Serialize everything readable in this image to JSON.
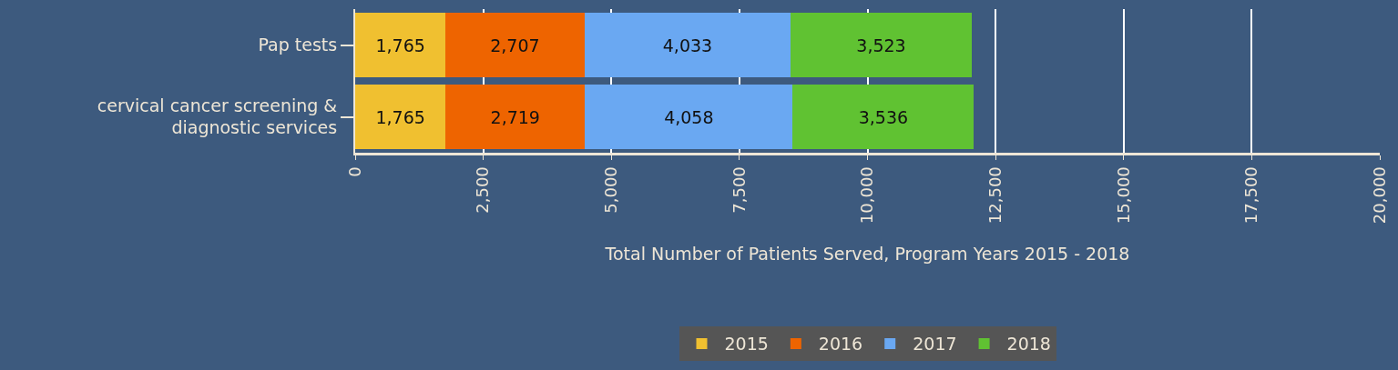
{
  "chart_data": {
    "type": "bar",
    "orientation": "horizontal",
    "stacked": true,
    "categories": [
      "Pap tests",
      "cervical cancer screening & diagnostic services"
    ],
    "series": [
      {
        "name": "2015",
        "color": "#f0c030",
        "values": [
          1765,
          1765
        ],
        "value_labels": [
          "1,765",
          "1,765"
        ]
      },
      {
        "name": "2016",
        "color": "#ee6400",
        "values": [
          2707,
          2719
        ],
        "value_labels": [
          "2,707",
          "2,719"
        ]
      },
      {
        "name": "2017",
        "color": "#6aa8f2",
        "values": [
          4033,
          4058
        ],
        "value_labels": [
          "4,033",
          "4,058"
        ]
      },
      {
        "name": "2018",
        "color": "#60c232",
        "values": [
          3523,
          3536
        ],
        "value_labels": [
          "3,523",
          "3,536"
        ]
      }
    ],
    "xlabel": "Total Number of Patients Served, Program Years 2015 - 2018",
    "xlim": [
      0,
      20000
    ],
    "xticks": [
      0,
      {
        "value": 2500,
        "label": "2,500"
      },
      {
        "value": 5000,
        "label": "5,000"
      },
      {
        "value": 7500,
        "label": "7,500"
      },
      {
        "value": 10000,
        "label": "10,000"
      },
      {
        "value": 12500,
        "label": "12,500"
      },
      {
        "value": 15000,
        "label": "15,000"
      },
      {
        "value": 17500,
        "label": "17,500"
      },
      {
        "value": 20000,
        "label": "20,000"
      }
    ],
    "grid": "x",
    "legend": "bottom"
  }
}
